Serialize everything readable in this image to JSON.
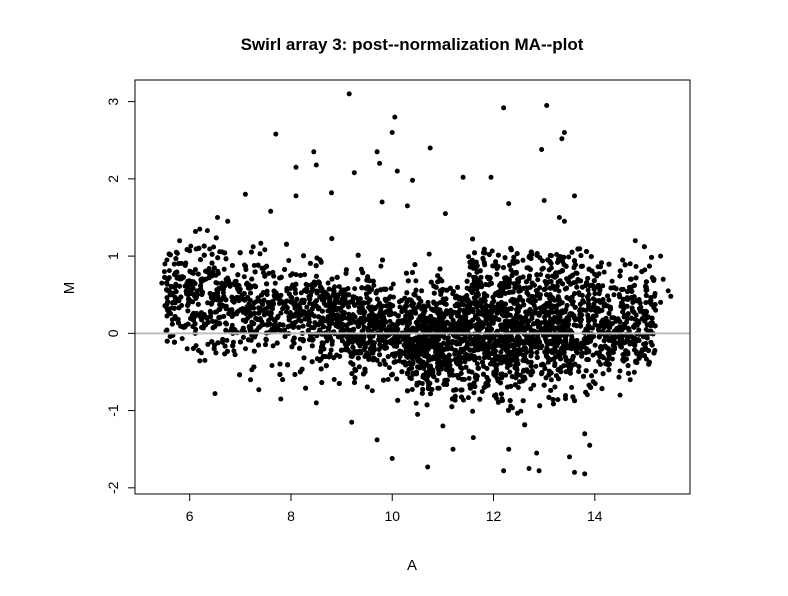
{
  "chart_data": {
    "type": "scatter",
    "title": "Swirl array 3: post--normalization MA--plot",
    "xlabel": "A",
    "ylabel": "M",
    "xlim": [
      4.92,
      15.88
    ],
    "ylim": [
      -2.08,
      3.28
    ],
    "xticks": [
      6,
      8,
      10,
      12,
      14
    ],
    "yticks": [
      -2,
      -1,
      0,
      1,
      2,
      3
    ],
    "xtick_labels": [
      "6",
      "8",
      "10",
      "12",
      "14"
    ],
    "ytick_labels": [
      "-2",
      "-1",
      "0",
      "1",
      "2",
      "3"
    ],
    "reference_line": {
      "y": 0,
      "color": "#bebebe"
    },
    "point_color": "#000000",
    "grid": false,
    "points_note": "approximately 8000 spots; dense cloud reproduced with representative sample",
    "points": [
      [
        9.15,
        3.1
      ],
      [
        12.2,
        2.92
      ],
      [
        13.05,
        2.95
      ],
      [
        7.7,
        2.58
      ],
      [
        10.0,
        2.6
      ],
      [
        10.05,
        2.8
      ],
      [
        13.4,
        2.6
      ],
      [
        13.35,
        2.52
      ],
      [
        8.45,
        2.35
      ],
      [
        9.7,
        2.35
      ],
      [
        10.75,
        2.4
      ],
      [
        12.95,
        2.38
      ],
      [
        8.1,
        2.15
      ],
      [
        8.5,
        2.18
      ],
      [
        9.75,
        2.2
      ],
      [
        9.25,
        2.08
      ],
      [
        10.1,
        2.1
      ],
      [
        10.4,
        1.98
      ],
      [
        11.4,
        2.02
      ],
      [
        11.95,
        2.02
      ],
      [
        7.1,
        1.8
      ],
      [
        8.8,
        1.82
      ],
      [
        8.1,
        1.78
      ],
      [
        10.3,
        1.65
      ],
      [
        9.8,
        1.7
      ],
      [
        13.0,
        1.72
      ],
      [
        13.6,
        1.78
      ],
      [
        11.05,
        1.55
      ],
      [
        7.6,
        1.58
      ],
      [
        13.3,
        1.5
      ],
      [
        6.55,
        1.5
      ],
      [
        6.75,
        1.45
      ],
      [
        6.2,
        1.35
      ],
      [
        6.35,
        1.33
      ],
      [
        12.3,
        1.68
      ],
      [
        13.4,
        1.45
      ],
      [
        5.8,
        1.2
      ],
      [
        5.55,
        0.95
      ],
      [
        5.5,
        0.8
      ],
      [
        5.45,
        0.65
      ],
      [
        5.6,
        0.55
      ],
      [
        15.35,
        0.7
      ],
      [
        15.45,
        0.55
      ],
      [
        15.5,
        0.48
      ],
      [
        15.3,
        0.4
      ],
      [
        15.2,
        0.3
      ],
      [
        15.0,
        0.25
      ],
      [
        15.1,
        0.1
      ],
      [
        15.3,
        1.0
      ],
      [
        14.8,
        1.2
      ],
      [
        14.7,
        0.9
      ],
      [
        6.5,
        -0.78
      ],
      [
        5.95,
        -0.2
      ],
      [
        6.3,
        -0.35
      ],
      [
        7.2,
        -0.6
      ],
      [
        7.8,
        -0.85
      ],
      [
        8.5,
        -0.9
      ],
      [
        9.7,
        -1.38
      ],
      [
        10.0,
        -1.62
      ],
      [
        10.7,
        -1.73
      ],
      [
        11.6,
        -1.35
      ],
      [
        12.3,
        -1.5
      ],
      [
        12.2,
        -1.78
      ],
      [
        12.7,
        -1.75
      ],
      [
        12.9,
        -1.78
      ],
      [
        13.6,
        -1.8
      ],
      [
        13.8,
        -1.82
      ],
      [
        13.5,
        -1.6
      ],
      [
        13.9,
        -1.45
      ],
      [
        13.8,
        -1.3
      ],
      [
        11.2,
        -1.5
      ],
      [
        12.85,
        -1.55
      ],
      [
        9.2,
        -1.15
      ],
      [
        10.5,
        -1.05
      ],
      [
        11.0,
        -1.2
      ],
      [
        14.5,
        -0.8
      ],
      [
        14.7,
        -0.6
      ],
      [
        14.9,
        -0.3
      ]
    ]
  }
}
